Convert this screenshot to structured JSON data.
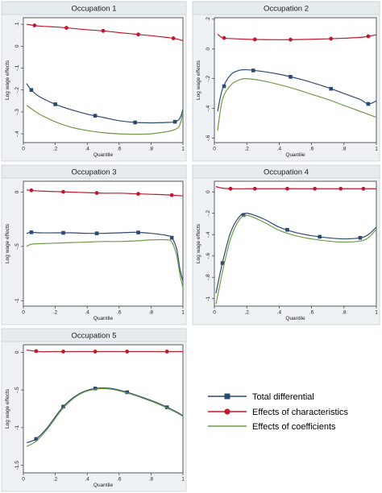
{
  "colors": {
    "total": "#2c4a6e",
    "characteristics": "#c0182c",
    "coefficients": "#6f9a48",
    "panel_header": "#e6ebee",
    "panel_bg": "#eef2f4",
    "plot_bg": "#ffffff"
  },
  "legend": {
    "total_label": "Total differential",
    "characteristics_label": "Effects of characteristics",
    "coefficients_label": "Effects of coefficients"
  },
  "chart_data": [
    {
      "type": "line",
      "title": "Occupation 1",
      "xlabel": "Quantile",
      "ylabel": "Log wage effects",
      "xlim": [
        0,
        1
      ],
      "ylim": [
        -0.44,
        0.13
      ],
      "xticks": [
        0,
        0.2,
        0.4,
        0.6,
        0.8,
        1
      ],
      "xtick_labels": [
        "0",
        ".2",
        ".4",
        ".6",
        ".8",
        "1"
      ],
      "yticks": [
        0.1,
        0,
        -0.1,
        -0.2,
        -0.3,
        -0.4
      ],
      "ytick_labels": [
        ".1",
        "0",
        "-.1",
        "-.2",
        "-.3",
        "-.4"
      ],
      "series": [
        {
          "key": "total",
          "x": [
            0.02,
            0.05,
            0.1,
            0.2,
            0.3,
            0.4,
            0.5,
            0.6,
            0.7,
            0.8,
            0.9,
            0.95,
            0.98,
            1.0
          ],
          "y": [
            -0.17,
            -0.2,
            -0.23,
            -0.265,
            -0.29,
            -0.31,
            -0.325,
            -0.34,
            -0.348,
            -0.35,
            -0.348,
            -0.345,
            -0.33,
            -0.29
          ],
          "markers_x": [
            0.05,
            0.2,
            0.45,
            0.7,
            0.95
          ]
        },
        {
          "key": "characteristics",
          "x": [
            0.02,
            0.1,
            0.2,
            0.3,
            0.4,
            0.5,
            0.6,
            0.7,
            0.8,
            0.9,
            0.95,
            1.0
          ],
          "y": [
            0.1,
            0.092,
            0.088,
            0.082,
            0.075,
            0.07,
            0.062,
            0.055,
            0.048,
            0.04,
            0.035,
            0.025
          ],
          "markers_x": [
            0.07,
            0.27,
            0.5,
            0.72,
            0.94
          ]
        },
        {
          "key": "coefficients",
          "x": [
            0.02,
            0.1,
            0.2,
            0.3,
            0.4,
            0.5,
            0.6,
            0.7,
            0.8,
            0.9,
            0.95,
            0.98,
            1.0
          ],
          "y": [
            -0.27,
            -0.31,
            -0.345,
            -0.37,
            -0.385,
            -0.395,
            -0.4,
            -0.402,
            -0.4,
            -0.39,
            -0.38,
            -0.36,
            -0.3
          ],
          "markers_x": []
        }
      ]
    },
    {
      "type": "line",
      "title": "Occupation 2",
      "xlabel": "Quantile",
      "ylabel": "Log wage effects",
      "xlim": [
        0,
        1
      ],
      "ylim": [
        -0.63,
        0.21
      ],
      "xticks": [
        0,
        0.2,
        0.4,
        0.6,
        0.8,
        1
      ],
      "xtick_labels": [
        "0",
        ".2",
        ".4",
        ".6",
        ".8",
        "1"
      ],
      "yticks": [
        0.2,
        0,
        -0.2,
        -0.4,
        -0.6
      ],
      "ytick_labels": [
        ".2",
        "0",
        "-.2",
        "-.4",
        "-.6"
      ],
      "series": [
        {
          "key": "total",
          "x": [
            0.02,
            0.05,
            0.1,
            0.15,
            0.2,
            0.3,
            0.4,
            0.5,
            0.6,
            0.7,
            0.8,
            0.9,
            0.95,
            1.0
          ],
          "y": [
            -0.42,
            -0.27,
            -0.175,
            -0.145,
            -0.14,
            -0.152,
            -0.17,
            -0.195,
            -0.225,
            -0.26,
            -0.3,
            -0.34,
            -0.37,
            -0.35
          ],
          "markers_x": [
            0.06,
            0.24,
            0.47,
            0.72,
            0.95
          ]
        },
        {
          "key": "characteristics",
          "x": [
            0.02,
            0.05,
            0.1,
            0.2,
            0.3,
            0.4,
            0.5,
            0.6,
            0.7,
            0.8,
            0.9,
            0.95,
            1.0
          ],
          "y": [
            0.1,
            0.075,
            0.07,
            0.065,
            0.063,
            0.062,
            0.063,
            0.065,
            0.068,
            0.072,
            0.078,
            0.085,
            0.095
          ],
          "markers_x": [
            0.06,
            0.25,
            0.47,
            0.72,
            0.95
          ]
        },
        {
          "key": "coefficients",
          "x": [
            0.02,
            0.05,
            0.1,
            0.15,
            0.2,
            0.3,
            0.4,
            0.5,
            0.6,
            0.7,
            0.8,
            0.9,
            0.95,
            1.0
          ],
          "y": [
            -0.55,
            -0.34,
            -0.245,
            -0.21,
            -0.2,
            -0.215,
            -0.24,
            -0.27,
            -0.305,
            -0.34,
            -0.38,
            -0.42,
            -0.44,
            -0.46
          ],
          "markers_x": []
        }
      ]
    },
    {
      "type": "line",
      "title": "Occupation 3",
      "xlabel": "Quantile",
      "ylabel": "Log wage effects",
      "xlim": [
        0,
        1
      ],
      "ylim": [
        -1.05,
        0.1
      ],
      "xticks": [
        0,
        0.2,
        0.4,
        0.6,
        0.8,
        1
      ],
      "xtick_labels": [
        "0",
        ".2",
        ".4",
        ".6",
        ".8",
        "1"
      ],
      "yticks": [
        0,
        -0.5,
        -1
      ],
      "ytick_labels": [
        "0",
        "-.5",
        "-1"
      ],
      "series": [
        {
          "key": "total",
          "x": [
            0.02,
            0.05,
            0.1,
            0.2,
            0.3,
            0.4,
            0.5,
            0.6,
            0.7,
            0.8,
            0.9,
            0.93,
            0.96,
            0.98,
            1.0
          ],
          "y": [
            -0.38,
            -0.37,
            -0.375,
            -0.375,
            -0.375,
            -0.38,
            -0.38,
            -0.375,
            -0.37,
            -0.38,
            -0.4,
            -0.42,
            -0.52,
            -0.7,
            -0.82
          ],
          "markers_x": [
            0.05,
            0.25,
            0.46,
            0.72,
            0.93
          ]
        },
        {
          "key": "characteristics",
          "x": [
            0.02,
            0.1,
            0.2,
            0.3,
            0.4,
            0.5,
            0.6,
            0.7,
            0.8,
            0.9,
            0.95,
            1.0
          ],
          "y": [
            0.02,
            0.01,
            0.005,
            0.0,
            -0.005,
            -0.01,
            -0.01,
            -0.015,
            -0.02,
            -0.025,
            -0.03,
            -0.035
          ],
          "markers_x": [
            0.05,
            0.25,
            0.46,
            0.72,
            0.93
          ]
        },
        {
          "key": "coefficients",
          "x": [
            0.02,
            0.05,
            0.1,
            0.2,
            0.3,
            0.4,
            0.5,
            0.6,
            0.7,
            0.8,
            0.9,
            0.93,
            0.96,
            0.98,
            1.0
          ],
          "y": [
            -0.5,
            -0.48,
            -0.475,
            -0.47,
            -0.465,
            -0.46,
            -0.455,
            -0.455,
            -0.45,
            -0.44,
            -0.44,
            -0.46,
            -0.58,
            -0.75,
            -0.88
          ],
          "markers_x": []
        }
      ]
    },
    {
      "type": "line",
      "title": "Occupation 4",
      "xlabel": "Quantile",
      "ylabel": "Log wage effects",
      "xlim": [
        0,
        1
      ],
      "ylim": [
        -1.07,
        0.1
      ],
      "xticks": [
        0,
        0.2,
        0.4,
        0.6,
        0.8,
        1
      ],
      "xtick_labels": [
        "0",
        ".2",
        ".4",
        ".6",
        ".8",
        "1"
      ],
      "yticks": [
        0,
        -0.2,
        -0.4,
        -0.6,
        -0.8,
        -1
      ],
      "ytick_labels": [
        "0",
        "-.2",
        "-.4",
        "-.6",
        "-.8",
        "-1"
      ],
      "series": [
        {
          "key": "total",
          "x": [
            0.01,
            0.03,
            0.06,
            0.1,
            0.15,
            0.2,
            0.3,
            0.4,
            0.5,
            0.6,
            0.7,
            0.8,
            0.9,
            0.95,
            1.0
          ],
          "y": [
            -0.95,
            -0.8,
            -0.6,
            -0.38,
            -0.24,
            -0.2,
            -0.25,
            -0.33,
            -0.38,
            -0.41,
            -0.43,
            -0.44,
            -0.43,
            -0.4,
            -0.33
          ],
          "markers_x": [
            0.05,
            0.18,
            0.45,
            0.65,
            0.9
          ]
        },
        {
          "key": "characteristics",
          "x": [
            0.01,
            0.05,
            0.1,
            0.2,
            0.3,
            0.4,
            0.5,
            0.6,
            0.7,
            0.8,
            0.9,
            1.0
          ],
          "y": [
            0.05,
            0.035,
            0.03,
            0.03,
            0.03,
            0.03,
            0.03,
            0.03,
            0.03,
            0.03,
            0.03,
            0.03
          ],
          "markers_x": [
            0.1,
            0.25,
            0.45,
            0.62,
            0.78,
            0.92
          ]
        },
        {
          "key": "coefficients",
          "x": [
            0.01,
            0.03,
            0.06,
            0.1,
            0.15,
            0.2,
            0.3,
            0.4,
            0.5,
            0.6,
            0.7,
            0.8,
            0.9,
            0.95,
            1.0
          ],
          "y": [
            -1.05,
            -0.9,
            -0.68,
            -0.44,
            -0.27,
            -0.22,
            -0.28,
            -0.36,
            -0.41,
            -0.44,
            -0.46,
            -0.47,
            -0.46,
            -0.43,
            -0.35
          ],
          "markers_x": []
        }
      ]
    },
    {
      "type": "line",
      "title": "Occupation 5",
      "xlabel": "Quantile",
      "ylabel": "Log wage effects",
      "xlim": [
        0,
        1
      ],
      "ylim": [
        -1.6,
        0.1
      ],
      "xticks": [
        0,
        0.2,
        0.4,
        0.6,
        0.8,
        1
      ],
      "xtick_labels": [
        "0",
        ".2",
        ".4",
        ".6",
        ".8",
        "1"
      ],
      "yticks": [
        0,
        -0.5,
        -1,
        -1.5
      ],
      "ytick_labels": [
        "0",
        "-.5",
        "-1",
        "-1.5"
      ],
      "series": [
        {
          "key": "total",
          "x": [
            0.02,
            0.08,
            0.15,
            0.25,
            0.35,
            0.45,
            0.55,
            0.65,
            0.75,
            0.85,
            0.95,
            1.0
          ],
          "y": [
            -1.2,
            -1.15,
            -1.0,
            -0.72,
            -0.55,
            -0.48,
            -0.48,
            -0.53,
            -0.6,
            -0.68,
            -0.78,
            -0.84
          ],
          "markers_x": [
            0.08,
            0.25,
            0.45,
            0.65,
            0.9
          ]
        },
        {
          "key": "characteristics",
          "x": [
            0.02,
            0.1,
            0.2,
            0.3,
            0.4,
            0.5,
            0.6,
            0.7,
            0.8,
            0.9,
            1.0
          ],
          "y": [
            0.03,
            0.01,
            0.01,
            0.01,
            0.01,
            0.01,
            0.01,
            0.01,
            0.01,
            0.01,
            0.01
          ],
          "markers_x": [
            0.08,
            0.25,
            0.45,
            0.65,
            0.9
          ]
        },
        {
          "key": "coefficients",
          "x": [
            0.02,
            0.08,
            0.15,
            0.25,
            0.35,
            0.45,
            0.55,
            0.65,
            0.75,
            0.85,
            0.95,
            1.0
          ],
          "y": [
            -1.25,
            -1.18,
            -1.02,
            -0.74,
            -0.56,
            -0.49,
            -0.49,
            -0.54,
            -0.61,
            -0.69,
            -0.79,
            -0.85
          ],
          "markers_x": []
        }
      ]
    }
  ]
}
